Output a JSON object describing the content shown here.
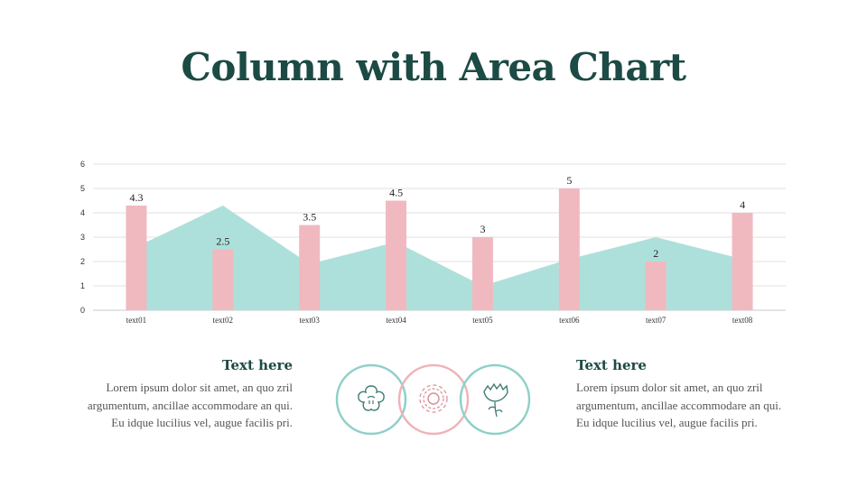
{
  "title": "Column with Area Chart",
  "chart_data": {
    "type": "bar",
    "categories": [
      "text01",
      "text02",
      "text03",
      "text04",
      "text05",
      "text06",
      "text07",
      "text08"
    ],
    "series": [
      {
        "type": "bar",
        "values": [
          4.3,
          2.5,
          3.5,
          4.5,
          3,
          5,
          2,
          4
        ],
        "color": "#f0b9c0"
      },
      {
        "type": "area",
        "values": [
          2.6,
          4.3,
          1.9,
          2.8,
          1.0,
          2.1,
          3.0,
          2.1
        ],
        "color": "#aee0db"
      }
    ],
    "data_labels": [
      "4.3",
      "2.5",
      "3.5",
      "4.5",
      "3",
      "5",
      "2",
      "4"
    ],
    "y_ticks": [
      "0",
      "1",
      "2",
      "3",
      "4",
      "5",
      "6"
    ],
    "ylim": [
      0,
      6
    ],
    "grid": true
  },
  "left_block": {
    "heading": "Text here",
    "body": "Lorem ipsum dolor sit amet, an quo zril argumentum, ancillae accommodare an qui. Eu idque lucilius vel, augue facilis pri."
  },
  "right_block": {
    "heading": "Text here",
    "body": "Lorem ipsum dolor sit amet, an quo zril argumentum, ancillae accommodare an qui. Eu idque lucilius vel, augue facilis pri."
  },
  "icons": [
    "flower-icon",
    "sunflower-icon",
    "carnation-icon"
  ],
  "colors": {
    "teal": "#7ecac3",
    "pink": "#efb3b9",
    "dark_green": "#1c4a44"
  }
}
